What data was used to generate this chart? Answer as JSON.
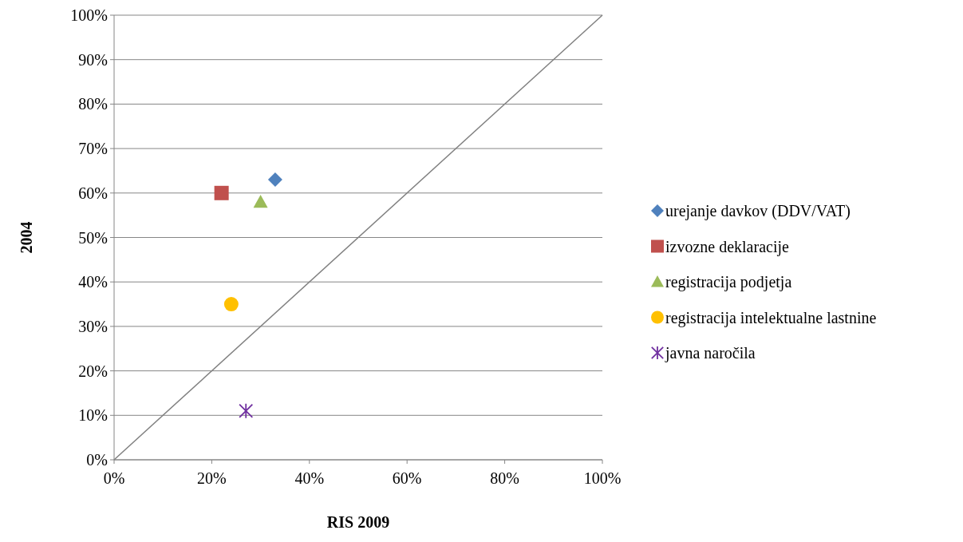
{
  "chart_data": {
    "type": "scatter",
    "xlabel": "RIS 2009",
    "ylabel": "2004",
    "xlim": [
      0,
      100
    ],
    "ylim": [
      0,
      100
    ],
    "xticks": [
      {
        "value": 0,
        "label": "0%"
      },
      {
        "value": 20,
        "label": "20%"
      },
      {
        "value": 40,
        "label": "40%"
      },
      {
        "value": 60,
        "label": "60%"
      },
      {
        "value": 80,
        "label": "80%"
      },
      {
        "value": 100,
        "label": "100%"
      }
    ],
    "yticks": [
      {
        "value": 0,
        "label": "0%"
      },
      {
        "value": 10,
        "label": "10%"
      },
      {
        "value": 20,
        "label": "20%"
      },
      {
        "value": 30,
        "label": "30%"
      },
      {
        "value": 40,
        "label": "40%"
      },
      {
        "value": 50,
        "label": "50%"
      },
      {
        "value": 60,
        "label": "60%"
      },
      {
        "value": 70,
        "label": "70%"
      },
      {
        "value": 80,
        "label": "80%"
      },
      {
        "value": 90,
        "label": "90%"
      },
      {
        "value": 100,
        "label": "100%"
      }
    ],
    "grid": "y",
    "legend": "right",
    "series": [
      {
        "name": "urejanje davkov (DDV/VAT)",
        "color": "#4f81bd",
        "marker": "diamond",
        "x": [
          33
        ],
        "values": [
          63
        ]
      },
      {
        "name": "izvozne deklaracije",
        "color": "#c0504d",
        "marker": "square",
        "x": [
          22
        ],
        "values": [
          60
        ]
      },
      {
        "name": "registracija podjetja",
        "color": "#9bbb59",
        "marker": "triangle",
        "x": [
          30
        ],
        "values": [
          58
        ]
      },
      {
        "name": "registracija intelektualne lastnine",
        "color": "#ffc000",
        "marker": "circle",
        "x": [
          24
        ],
        "values": [
          35
        ]
      },
      {
        "name": "javna naročila",
        "color": "#7030a0",
        "marker": "cross",
        "x": [
          27
        ],
        "values": [
          11
        ]
      },
      {
        "type": "line",
        "color": "#808080",
        "marker": "none",
        "x": [
          0,
          100
        ],
        "values": [
          0,
          100
        ]
      }
    ]
  }
}
